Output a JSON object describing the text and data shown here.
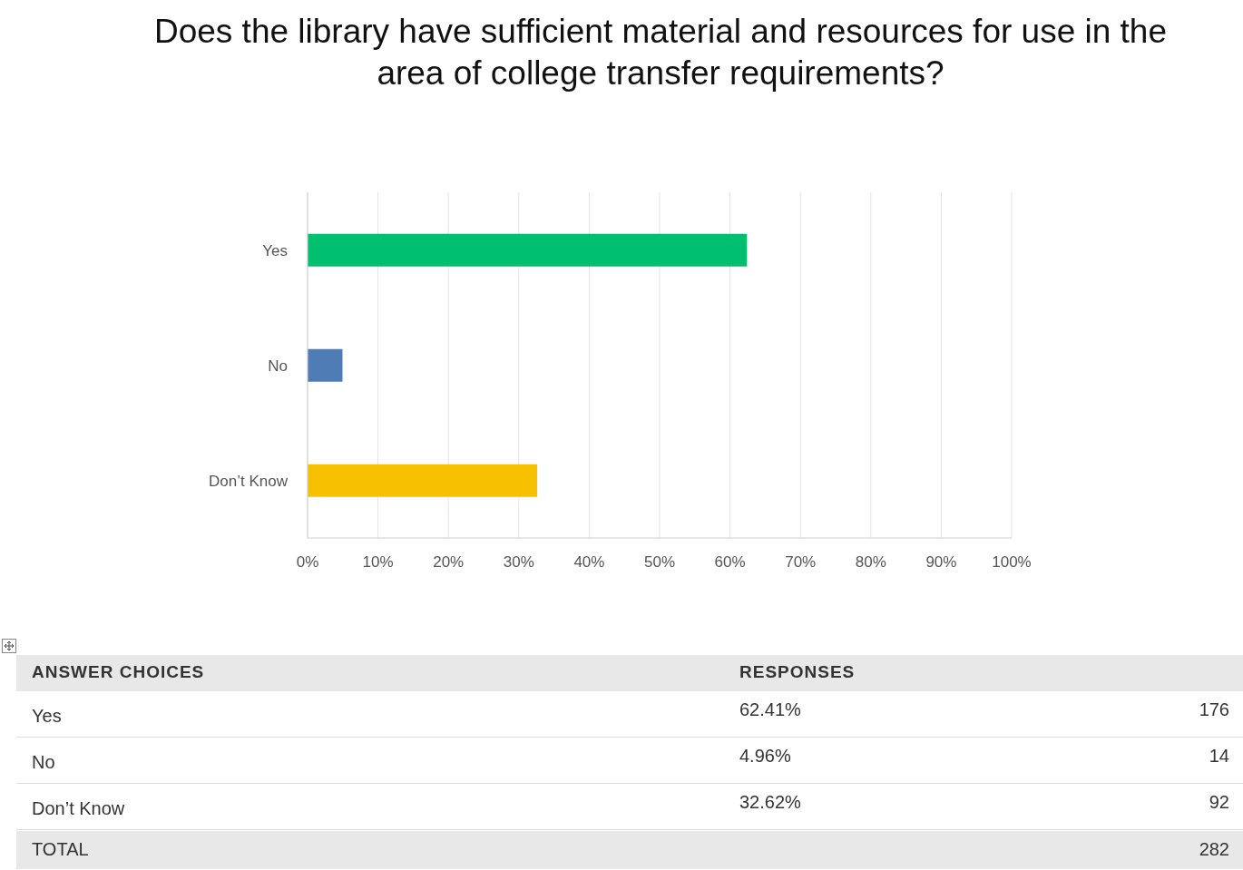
{
  "chart_data": {
    "type": "bar",
    "orientation": "horizontal",
    "title": "Does the library have sufficient material and resources for use in the area of college transfer requirements?",
    "categories": [
      "Yes",
      "No",
      "Don’t Know"
    ],
    "values": [
      62.41,
      4.96,
      32.62
    ],
    "colors": [
      "#00bf6f",
      "#507cb6",
      "#f6c000"
    ],
    "xlim": [
      0,
      100
    ],
    "xticks": [
      {
        "value": 0,
        "label": "0%"
      },
      {
        "value": 10,
        "label": "10%"
      },
      {
        "value": 20,
        "label": "20%"
      },
      {
        "value": 30,
        "label": "30%"
      },
      {
        "value": 40,
        "label": "40%"
      },
      {
        "value": 50,
        "label": "50%"
      },
      {
        "value": 60,
        "label": "60%"
      },
      {
        "value": 70,
        "label": "70%"
      },
      {
        "value": 80,
        "label": "80%"
      },
      {
        "value": 90,
        "label": "90%"
      },
      {
        "value": 100,
        "label": "100%"
      }
    ],
    "grid": "x",
    "annotations": [
      "ANSWER CHOICES",
      "RESPONSES",
      "62.41%",
      "176",
      "4.96%",
      "14",
      "32.62%",
      "92",
      "TOTAL",
      "282"
    ]
  }
}
